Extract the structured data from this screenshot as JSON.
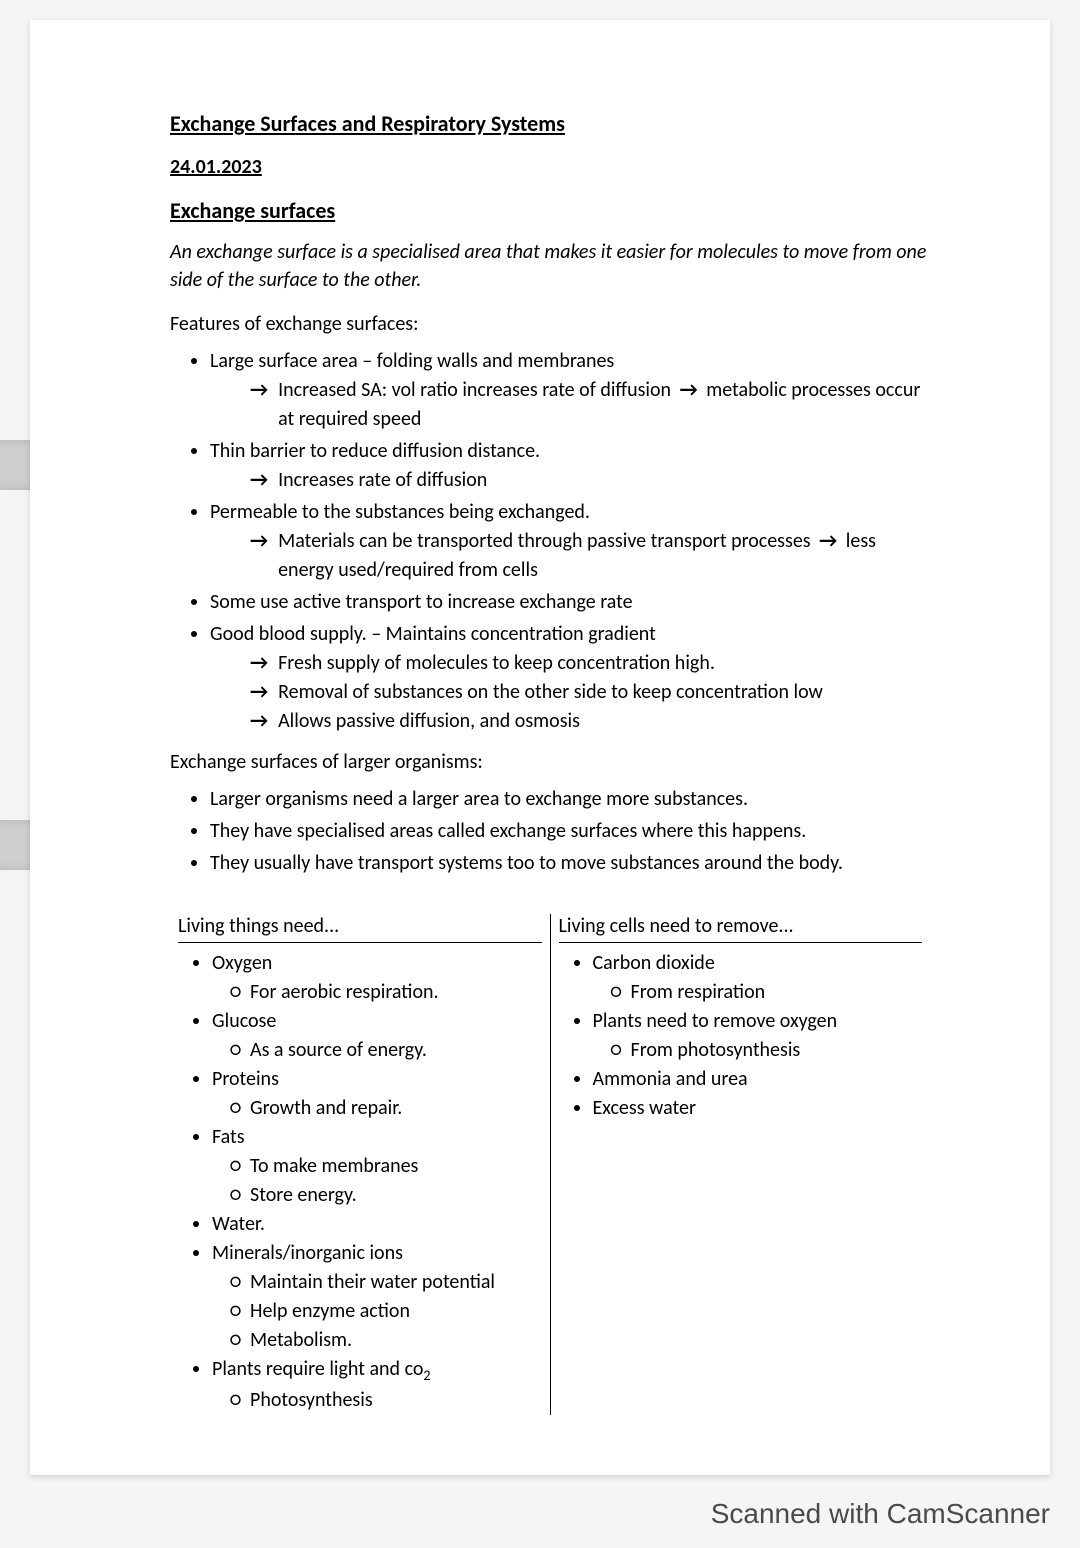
{
  "title": "Exchange Surfaces and Respiratory Systems",
  "date": "24.01.2023",
  "section_head": "Exchange surfaces",
  "definition": "An exchange surface is a specialised area that makes it easier for molecules to move from one side of the surface to the other.",
  "features_intro": "Features of exchange surfaces:",
  "features": {
    "f1": "Large surface area – folding walls and membranes",
    "f1_a_pre": "Increased SA: vol ratio increases rate of diffusion",
    "f1_a_post": "metabolic processes occur at required speed",
    "f2": "Thin barrier to reduce diffusion distance.",
    "f2_a": "Increases rate of diffusion",
    "f3": "Permeable to the substances being exchanged.",
    "f3_a_pre": "Materials can be transported through passive transport processes",
    "f3_a_post": "less energy used/required from cells",
    "f4": "Some use active transport to increase exchange rate",
    "f5": "Good blood supply. – Maintains concentration gradient",
    "f5_a": "Fresh supply of molecules to keep concentration high.",
    "f5_b": "Removal of substances on the other side to keep concentration low",
    "f5_c": "Allows passive diffusion, and osmosis"
  },
  "larger_intro": "Exchange surfaces of larger organisms:",
  "larger": {
    "l1": "Larger organisms need a larger area to exchange more substances.",
    "l2": "They have specialised areas called exchange surfaces where this happens.",
    "l3": "They usually have transport systems too to move substances around the body."
  },
  "table": {
    "left_head": "Living things need...",
    "right_head": "Living cells need to remove...",
    "left": {
      "i1": "Oxygen",
      "i1s": "For aerobic respiration.",
      "i2": "Glucose",
      "i2s": "As a source of energy.",
      "i3": "Proteins",
      "i3s": "Growth and repair.",
      "i4": "Fats",
      "i4s1": "To make membranes",
      "i4s2": "Store energy.",
      "i5": "Water.",
      "i6": "Minerals/inorganic ions",
      "i6s1": "Maintain their water potential",
      "i6s2": "Help enzyme action",
      "i6s3": "Metabolism.",
      "i7_pre": "Plants require light and co",
      "i7_sub": "2",
      "i7s": "Photosynthesis"
    },
    "right": {
      "r1": "Carbon dioxide",
      "r1s": "From respiration",
      "r2": "Plants need to remove oxygen",
      "r2s": "From photosynthesis",
      "r3": "Ammonia and urea",
      "r4": "Excess water"
    }
  },
  "arrow": "→",
  "watermark": "Scanned with CamScanner"
}
